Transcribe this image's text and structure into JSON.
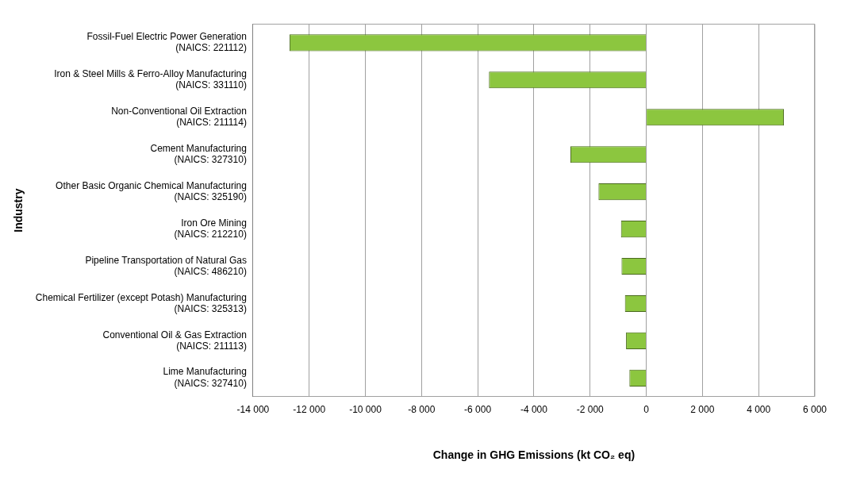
{
  "chart_data": {
    "type": "bar",
    "orientation": "horizontal",
    "xlabel": "Change in GHG Emissions (kt CO₂ eq)",
    "ylabel": "Industry",
    "categories": [
      "Fossil-Fuel Electric Power Generation\n(NAICS: 221112)",
      "Iron & Steel Mills & Ferro-Alloy Manufacturing\n(NAICS: 331110)",
      "Non-Conventional Oil Extraction\n(NAICS: 211114)",
      "Cement Manufacturing\n(NAICS: 327310)",
      "Other Basic Organic Chemical Manufacturing\n(NAICS: 325190)",
      "Iron Ore Mining\n(NAICS: 212210)",
      "Pipeline Transportation of Natural Gas\n(NAICS: 486210)",
      "Chemical Fertilizer (except Potash) Manufacturing\n(NAICS: 325313)",
      "Conventional Oil & Gas Extraction\n(NAICS: 211113)",
      "Lime Manufacturing\n(NAICS: 327410)"
    ],
    "values": [
      -12700,
      -5600,
      4900,
      -2700,
      -1700,
      -900,
      -880,
      -760,
      -720,
      -600
    ],
    "color": "#8cc63f",
    "xlim": [
      -14000,
      6000
    ],
    "xticks": [
      {
        "value": -14000,
        "label": "-14 000"
      },
      {
        "value": -12000,
        "label": "-12 000"
      },
      {
        "value": -10000,
        "label": "-10 000"
      },
      {
        "value": -8000,
        "label": "-8 000"
      },
      {
        "value": -6000,
        "label": "-6 000"
      },
      {
        "value": -4000,
        "label": "-4 000"
      },
      {
        "value": -2000,
        "label": "-2 000"
      },
      0,
      {
        "value": 2000,
        "label": "2 000"
      },
      {
        "value": 4000,
        "label": "4 000"
      },
      {
        "value": 6000,
        "label": "6 000"
      }
    ],
    "grid": "x"
  }
}
